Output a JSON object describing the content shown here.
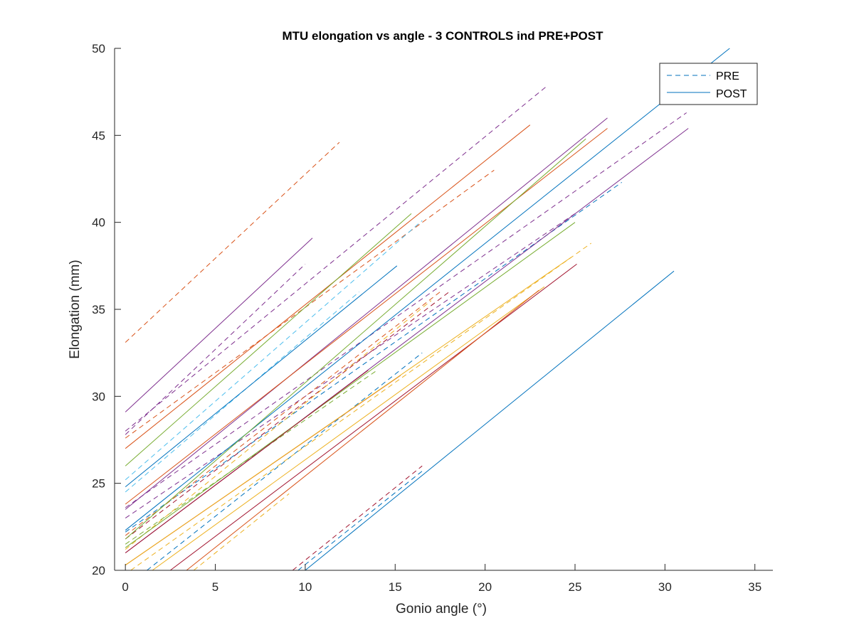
{
  "chart_data": {
    "type": "line",
    "title": "MTU elongation vs angle - 3 CONTROLS ind PRE+POST",
    "xlabel": "Gonio angle (°)",
    "ylabel": "Elongation (mm)",
    "xlim": [
      -0.6,
      36.0
    ],
    "ylim": [
      20,
      50
    ],
    "xticks": [
      0,
      5,
      10,
      15,
      20,
      25,
      30,
      35
    ],
    "yticks": [
      20,
      25,
      30,
      35,
      40,
      45,
      50
    ],
    "grid": false,
    "legend": {
      "placement": "top-right",
      "entries": [
        {
          "label": "PRE",
          "style": "dashed",
          "color": "#0072BD"
        },
        {
          "label": "POST",
          "style": "solid",
          "color": "#0072BD"
        }
      ]
    },
    "series": [
      {
        "style": "dashed",
        "color": "#D95319",
        "x": [
          0,
          11.9
        ],
        "y": [
          33.1,
          44.6
        ]
      },
      {
        "style": "dashed",
        "color": "#7E2F8E",
        "x": [
          0,
          23.4
        ],
        "y": [
          28.0,
          47.8
        ]
      },
      {
        "style": "dashed",
        "color": "#7E2F8E",
        "x": [
          0,
          10.0
        ],
        "y": [
          27.8,
          37.6
        ]
      },
      {
        "style": "dashed",
        "color": "#D95319",
        "x": [
          0,
          20.5
        ],
        "y": [
          27.6,
          43.0
        ]
      },
      {
        "style": "dashed",
        "color": "#4DBEEE",
        "x": [
          0,
          16.5
        ],
        "y": [
          25.2,
          40.1
        ]
      },
      {
        "style": "dashed",
        "color": "#4DBEEE",
        "x": [
          0,
          13.0
        ],
        "y": [
          24.5,
          36.0
        ]
      },
      {
        "style": "dashed",
        "color": "#7E2F8E",
        "x": [
          0,
          31.2
        ],
        "y": [
          23.6,
          46.3
        ]
      },
      {
        "style": "dashed",
        "color": "#0072BD",
        "x": [
          0,
          27.6
        ],
        "y": [
          22.2,
          42.3
        ]
      },
      {
        "style": "dashed",
        "color": "#7E2F8E",
        "x": [
          0,
          25.0
        ],
        "y": [
          23.0,
          40.5
        ]
      },
      {
        "style": "dashed",
        "color": "#D95319",
        "x": [
          0,
          17.5
        ],
        "y": [
          22.0,
          36.0
        ]
      },
      {
        "style": "dashed",
        "color": "#A2142F",
        "x": [
          0,
          18.0
        ],
        "y": [
          21.8,
          36.0
        ]
      },
      {
        "style": "dashed",
        "color": "#77AC30",
        "x": [
          0,
          14.0
        ],
        "y": [
          21.5,
          31.5
        ]
      },
      {
        "style": "dashed",
        "color": "#0072BD",
        "x": [
          1.2,
          16.5
        ],
        "y": [
          20.0,
          32.5
        ]
      },
      {
        "style": "dashed",
        "color": "#EDB120",
        "x": [
          0.3,
          25.9
        ],
        "y": [
          20.0,
          38.8
        ]
      },
      {
        "style": "dashed",
        "color": "#EDB120",
        "x": [
          0,
          17.0
        ],
        "y": [
          21.2,
          35.5
        ]
      },
      {
        "style": "dashed",
        "color": "#EDB120",
        "x": [
          3.8,
          9.1
        ],
        "y": [
          20.0,
          24.4
        ]
      },
      {
        "style": "dashed",
        "color": "#A2142F",
        "x": [
          9.3,
          16.5
        ],
        "y": [
          20.0,
          26.0
        ]
      },
      {
        "style": "dashed",
        "color": "#0072BD",
        "x": [
          9.6,
          16.5
        ],
        "y": [
          20.0,
          25.7
        ]
      },
      {
        "style": "solid",
        "color": "#7E2F8E",
        "x": [
          0,
          10.4
        ],
        "y": [
          29.1,
          39.1
        ]
      },
      {
        "style": "solid",
        "color": "#D95319",
        "x": [
          0,
          22.5
        ],
        "y": [
          27.0,
          45.6
        ]
      },
      {
        "style": "solid",
        "color": "#77AC30",
        "x": [
          0,
          15.9
        ],
        "y": [
          26.0,
          40.5
        ]
      },
      {
        "style": "solid",
        "color": "#0072BD",
        "x": [
          0,
          15.1
        ],
        "y": [
          24.8,
          37.5
        ]
      },
      {
        "style": "solid",
        "color": "#0072BD",
        "x": [
          0,
          33.6
        ],
        "y": [
          22.3,
          50.0
        ]
      },
      {
        "style": "solid",
        "color": "#7E2F8E",
        "x": [
          0,
          26.8
        ],
        "y": [
          23.5,
          46.0
        ]
      },
      {
        "style": "solid",
        "color": "#D95319",
        "x": [
          0,
          26.8
        ],
        "y": [
          23.8,
          45.4
        ]
      },
      {
        "style": "solid",
        "color": "#77AC30",
        "x": [
          0,
          25.6
        ],
        "y": [
          21.8,
          44.8
        ]
      },
      {
        "style": "solid",
        "color": "#7E2F8E",
        "x": [
          0,
          31.3
        ],
        "y": [
          21.0,
          45.4
        ]
      },
      {
        "style": "solid",
        "color": "#77AC30",
        "x": [
          0,
          25.0
        ],
        "y": [
          21.3,
          40.0
        ]
      },
      {
        "style": "solid",
        "color": "#A2142F",
        "x": [
          0,
          13.5
        ],
        "y": [
          21.0,
          31.5
        ]
      },
      {
        "style": "solid",
        "color": "#D95319",
        "x": [
          0,
          15.3
        ],
        "y": [
          20.3,
          31.2
        ]
      },
      {
        "style": "solid",
        "color": "#EDB120",
        "x": [
          0,
          24.8
        ],
        "y": [
          20.3,
          38.0
        ]
      },
      {
        "style": "solid",
        "color": "#EDB120",
        "x": [
          1.5,
          23.3
        ],
        "y": [
          20.0,
          36.3
        ]
      },
      {
        "style": "solid",
        "color": "#A2142F",
        "x": [
          2.5,
          25.1
        ],
        "y": [
          20.0,
          37.6
        ]
      },
      {
        "style": "solid",
        "color": "#D95319",
        "x": [
          3.4,
          23.0
        ],
        "y": [
          20.0,
          36.1
        ]
      },
      {
        "style": "solid",
        "color": "#0072BD",
        "x": [
          10.0,
          30.5
        ],
        "y": [
          20.0,
          37.2
        ]
      }
    ]
  }
}
